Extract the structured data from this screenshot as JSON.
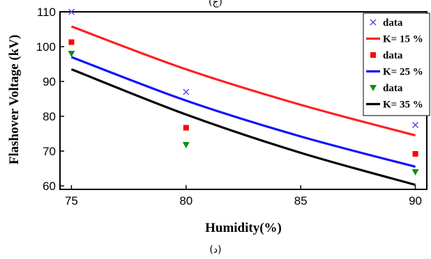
{
  "caption_top": "(ج)",
  "caption_bottom": "(د)",
  "chart_data": {
    "type": "scatter",
    "xlabel": "Humidity(%)",
    "ylabel": "Flashover Voltage (kV)",
    "xlim": [
      74.5,
      90.5
    ],
    "ylim": [
      59,
      110
    ],
    "xticks": [
      75,
      80,
      85,
      90
    ],
    "yticks": [
      60,
      70,
      80,
      90,
      100,
      110
    ],
    "grid": false,
    "legend_position": "top-right",
    "series": [
      {
        "name": "data",
        "kind": "points",
        "marker": "x",
        "color": "#4a4ae6",
        "x": [
          75,
          80,
          90
        ],
        "y": [
          110,
          87,
          77.5
        ]
      },
      {
        "name": "K= 15 %",
        "kind": "line",
        "color": "#ff2020",
        "x": [
          75,
          80,
          85,
          90
        ],
        "y": [
          105.8,
          93.5,
          83.3,
          74.5
        ]
      },
      {
        "name": "data",
        "kind": "points",
        "marker": "square",
        "color": "#ff0000",
        "x": [
          75,
          80,
          90
        ],
        "y": [
          101.3,
          76.7,
          69.2
        ]
      },
      {
        "name": "K= 25 %",
        "kind": "line",
        "color": "#1010ff",
        "x": [
          75,
          80,
          85,
          90
        ],
        "y": [
          97,
          84.5,
          74.2,
          65.5
        ]
      },
      {
        "name": "data",
        "kind": "points",
        "marker": "triangle",
        "color": "#109010",
        "x": [
          75,
          80,
          90
        ],
        "y": [
          98,
          71.8,
          64
        ]
      },
      {
        "name": "K= 35 %",
        "kind": "line",
        "color": "#000000",
        "x": [
          75,
          80,
          85,
          90
        ],
        "y": [
          93.5,
          80.5,
          69.5,
          60.3
        ]
      }
    ]
  }
}
